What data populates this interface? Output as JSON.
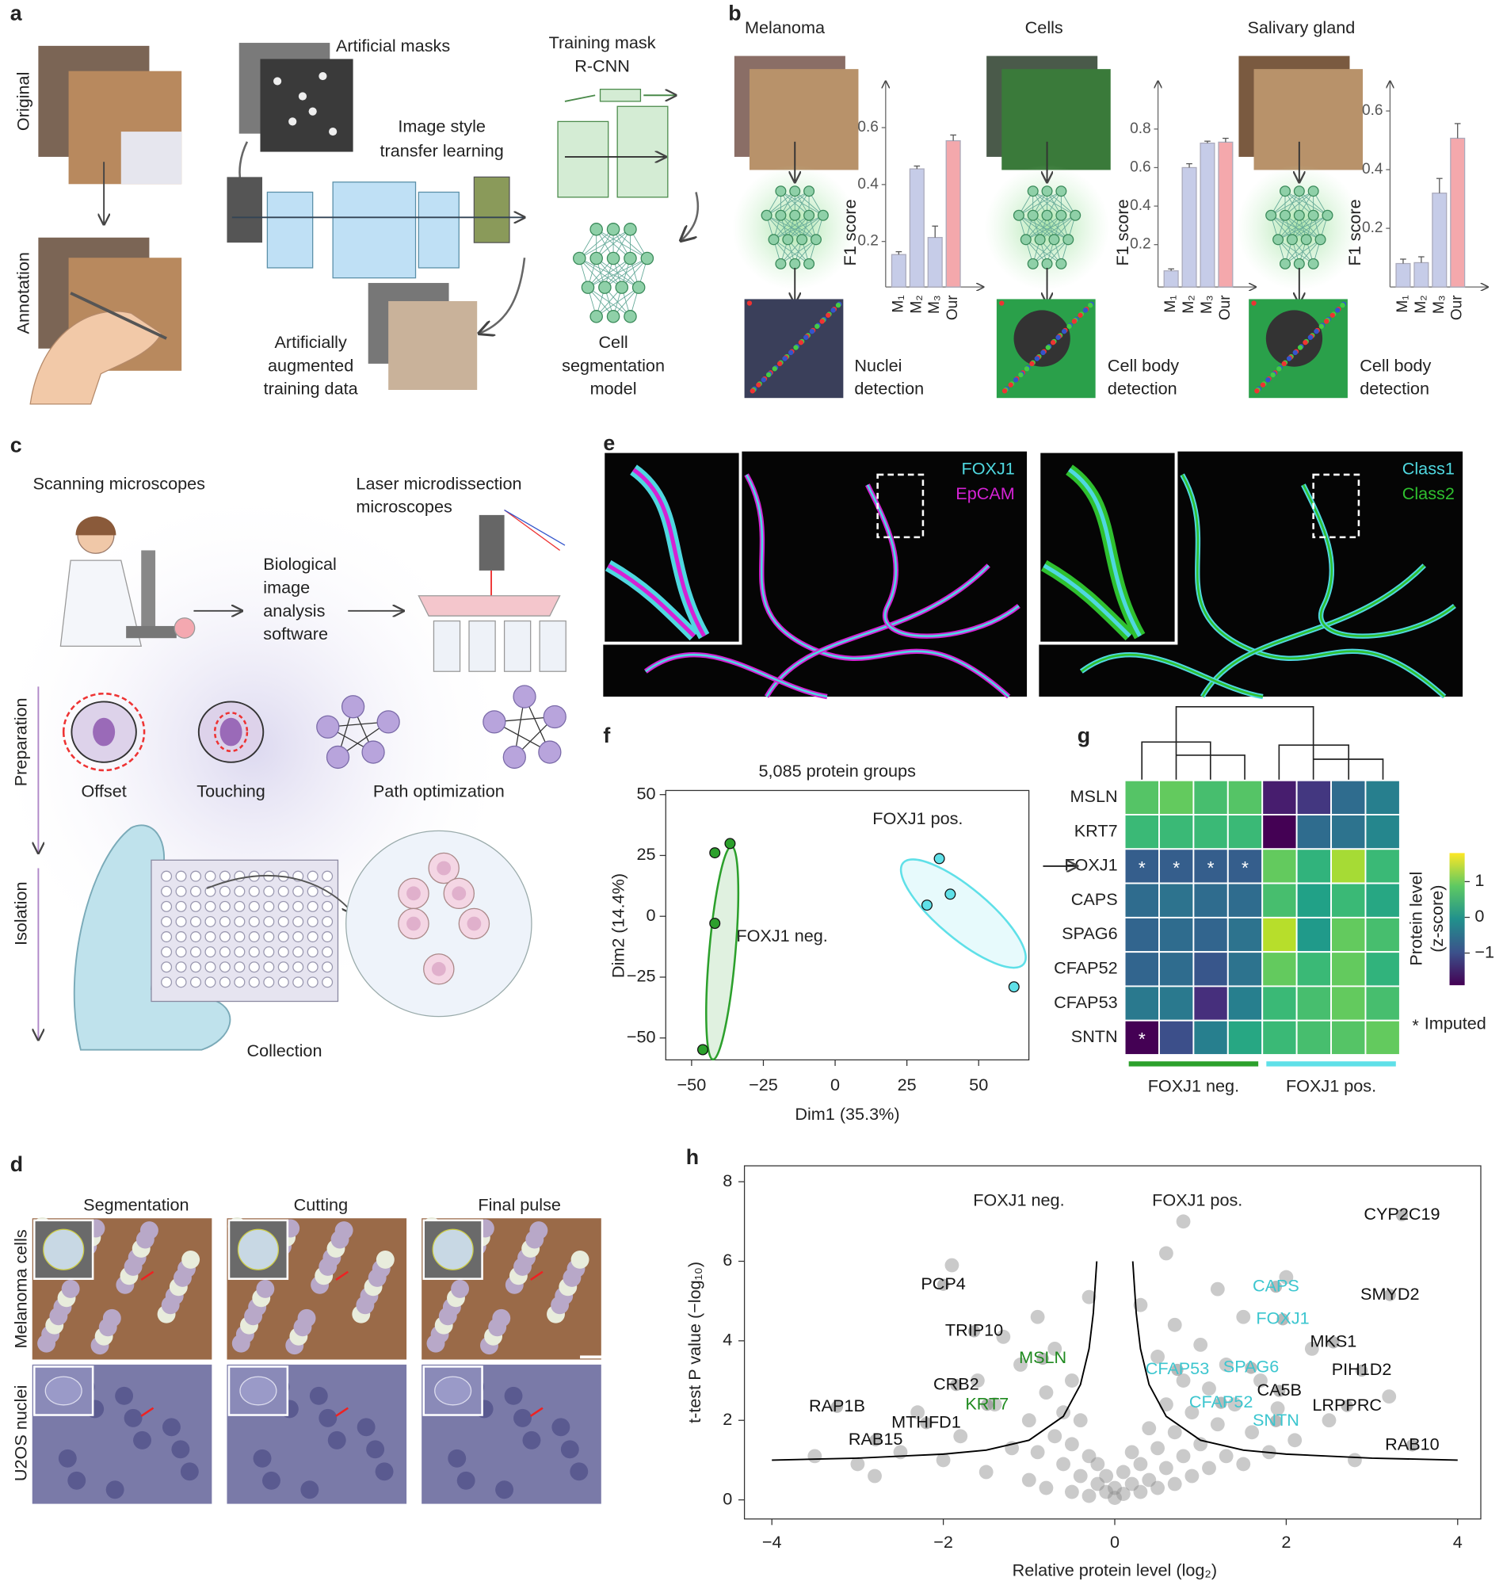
{
  "panel_labels": [
    "a",
    "b",
    "c",
    "d",
    "e",
    "f",
    "g",
    "h"
  ],
  "panel_a": {
    "original": "Original",
    "annotation": "Annotation",
    "artificial_masks": "Artificial masks",
    "style_transfer": [
      "Image style",
      "transfer learning"
    ],
    "augmented": [
      "Artificially",
      "augmented",
      "training data"
    ],
    "training": [
      "Training mask",
      "R-CNN"
    ],
    "model": [
      "Cell",
      "segmentation",
      "model"
    ]
  },
  "panel_c": {
    "scanning": "Scanning microscopes",
    "laser": [
      "Laser microdissection",
      "microscopes"
    ],
    "software": [
      "Biological",
      "image",
      "analysis",
      "software"
    ],
    "preparation": "Preparation",
    "isolation": "Isolation",
    "offset": "Offset",
    "touching": "Touching",
    "path": "Path optimization",
    "collection": "Collection"
  },
  "panel_d": {
    "columns": [
      "Segmentation",
      "Cutting",
      "Final pulse"
    ],
    "rows": [
      "Melanoma cells",
      "U2OS nuclei"
    ]
  },
  "panel_e": {
    "left": [
      {
        "text": "FOXJ1",
        "color": "#4fd8e0"
      },
      {
        "text": "EpCAM",
        "color": "#d422d4"
      }
    ],
    "right": [
      {
        "text": "Class1",
        "color": "#4fd8e0"
      },
      {
        "text": "Class2",
        "color": "#2fc02f"
      }
    ]
  },
  "chart_data": [
    {
      "type": "bar",
      "title": "Melanoma",
      "ylabel": "F1 score",
      "caption": [
        "Nuclei",
        "detection"
      ],
      "categories": [
        "M₁",
        "M₂",
        "M₃",
        "Our"
      ],
      "values": [
        0.154,
        0.455,
        0.214,
        0.554
      ],
      "errors": [
        0.01,
        0.01,
        0.04,
        0.02
      ],
      "colors": [
        "#c6cce8",
        "#c6cce8",
        "#c6cce8",
        "#f4a8ac"
      ],
      "ylim": [
        0.04,
        0.71
      ],
      "yticks": [
        0.2,
        0.4,
        0.6
      ]
    },
    {
      "type": "bar",
      "title": "Cells",
      "ylabel": "F1 score",
      "caption": [
        "Cell body",
        "detection"
      ],
      "categories": [
        "M₁",
        "M₂",
        "M₃",
        "Our"
      ],
      "values": [
        0.064,
        0.6,
        0.727,
        0.732
      ],
      "errors": [
        0.01,
        0.02,
        0.01,
        0.02
      ],
      "colors": [
        "#c6cce8",
        "#c6cce8",
        "#c6cce8",
        "#f4a8ac"
      ],
      "ylim": [
        -0.02,
        0.97
      ],
      "yticks": [
        0.2,
        0.4,
        0.6,
        0.8
      ]
    },
    {
      "type": "bar",
      "title": "Salivary gland",
      "ylabel": "F1 score",
      "caption": [
        "Cell body",
        "detection"
      ],
      "categories": [
        "M₁",
        "M₂",
        "M₃",
        "Our"
      ],
      "values": [
        0.08,
        0.083,
        0.32,
        0.507
      ],
      "errors": [
        0.015,
        0.02,
        0.05,
        0.05
      ],
      "colors": [
        "#c6cce8",
        "#c6cce8",
        "#c6cce8",
        "#f4a8ac"
      ],
      "ylim": [
        0,
        0.65
      ],
      "yticks": [
        0.2,
        0.4,
        0.6
      ]
    },
    {
      "type": "scatter",
      "title": "5,085 protein groups",
      "xlabel": "Dim1 (35.3%)",
      "ylabel": "Dim2 (14.4%)",
      "xlim": [
        -59,
        67.5
      ],
      "ylim": [
        -59,
        51.7
      ],
      "xticks": [
        {
          "value": -50,
          "label": "−50"
        },
        {
          "value": -25,
          "label": "−25"
        },
        0,
        25,
        50
      ],
      "yticks": [
        50,
        25,
        0,
        {
          "value": -25,
          "label": "−25"
        },
        {
          "value": -50,
          "label": "−50"
        }
      ],
      "series": [
        {
          "name": "FOXJ1 neg.",
          "color": "#2ca02c",
          "x": [
            -41.9,
            -36.6,
            -41.9,
            -46.1
          ],
          "y": [
            26.1,
            29.9,
            -2.9,
            -54.8
          ]
        },
        {
          "name": "FOXJ1 pos.",
          "color": "#5fe0e8",
          "x": [
            36.3,
            40.1,
            32,
            62.3
          ],
          "y": [
            23.7,
            9.1,
            4.6,
            -29
          ]
        }
      ]
    },
    {
      "type": "heatmap",
      "rows": [
        "MSLN",
        "KRT7",
        "FOXJ1",
        "CAPS",
        "SPAG6",
        "CFAP52",
        "CFAP53",
        "SNTN"
      ],
      "values": [
        [
          0.8,
          0.9,
          0.7,
          0.8,
          -1.6,
          -1.3,
          -0.6,
          -0.3
        ],
        [
          0.6,
          0.6,
          0.6,
          0.6,
          -1.9,
          -0.6,
          -0.5,
          -0.2
        ],
        [
          -0.8,
          -0.8,
          -0.8,
          -0.8,
          0.9,
          0.5,
          1.3,
          0.6
        ],
        [
          -0.6,
          -0.5,
          -0.6,
          -0.6,
          0.7,
          0.2,
          0.6,
          0.3
        ],
        [
          -0.7,
          -0.6,
          -0.7,
          -0.5,
          1.4,
          0.1,
          0.9,
          0.7
        ],
        [
          -0.7,
          -0.6,
          -0.9,
          -0.5,
          0.9,
          0.6,
          0.9,
          0.5
        ],
        [
          -0.4,
          -0.4,
          -1.4,
          -0.3,
          0.6,
          0.7,
          0.9,
          0.7
        ],
        [
          -1.9,
          -1.0,
          -0.3,
          0.3,
          0.6,
          0.7,
          0.8,
          0.9
        ]
      ],
      "colormap": "viridis",
      "clim": [
        -1.9,
        1.8
      ],
      "cbar_label": [
        "Protein level",
        "(z-score)"
      ],
      "cbar_ticks": [
        1,
        0,
        {
          "value": -1,
          "label": "−1"
        }
      ],
      "imputed_marker": "*",
      "imputed_label": "Imputed",
      "imputed": [
        [
          2,
          0
        ],
        [
          2,
          1
        ],
        [
          2,
          2
        ],
        [
          2,
          3
        ],
        [
          7,
          0
        ]
      ],
      "groups": [
        {
          "name": "FOXJ1 neg.",
          "color": "#2ca02c",
          "columns": [
            0,
            1,
            2,
            3
          ]
        },
        {
          "name": "FOXJ1 pos.",
          "color": "#5fe0e8",
          "columns": [
            4,
            5,
            6,
            7
          ]
        }
      ]
    },
    {
      "type": "volcano",
      "headers": [
        "FOXJ1 neg.",
        "FOXJ1 pos."
      ],
      "xlabel": "Relative protein level (log₂)",
      "ylabel": "t-test P value (−log₁₀)",
      "xlim": [
        -4.32,
        4.27
      ],
      "ylim": [
        -0.48,
        8.4
      ],
      "xticks": [
        {
          "value": -4,
          "label": "−4"
        },
        {
          "value": -2,
          "label": "−2"
        },
        0,
        2,
        4
      ],
      "yticks": [
        0,
        2,
        4,
        6,
        8
      ],
      "points": {
        "color": "#8a8a8a",
        "x": [
          -3.0,
          -2.5,
          -2.3,
          -2.0,
          -1.9,
          -1.8,
          -1.6,
          -1.5,
          -1.4,
          -1.3,
          -1.2,
          -1.1,
          -1.0,
          -1.0,
          -0.9,
          -0.9,
          -0.8,
          -0.8,
          -0.7,
          -0.7,
          -0.6,
          -0.6,
          -0.5,
          -0.5,
          -0.5,
          -0.4,
          -0.4,
          -0.3,
          -0.3,
          -0.3,
          -0.2,
          -0.2,
          -0.1,
          -0.1,
          0,
          0,
          0.1,
          0.1,
          0.2,
          0.2,
          0.3,
          0.3,
          0.3,
          0.4,
          0.4,
          0.5,
          0.5,
          0.5,
          0.6,
          0.6,
          0.6,
          0.7,
          0.7,
          0.7,
          0.8,
          0.8,
          0.8,
          0.9,
          0.9,
          1.0,
          1.0,
          1.1,
          1.1,
          1.2,
          1.2,
          1.3,
          1.3,
          1.4,
          1.5,
          1.5,
          1.6,
          1.7,
          1.8,
          1.9,
          2.0,
          2.1,
          2.3,
          2.5,
          2.8,
          3.2,
          -3.5,
          -2.8
        ],
        "y": [
          0.9,
          1.2,
          2.2,
          1.0,
          5.9,
          1.6,
          3.0,
          0.7,
          2.4,
          4.1,
          1.3,
          3.4,
          0.5,
          2.0,
          1.2,
          4.6,
          0.3,
          2.7,
          1.6,
          3.8,
          0.9,
          2.2,
          0.2,
          1.4,
          3.0,
          0.6,
          2.0,
          0.1,
          1.1,
          5.1,
          0.4,
          0.9,
          0.2,
          0.6,
          0.05,
          0.3,
          0.15,
          0.7,
          0.4,
          1.2,
          0.2,
          0.9,
          4.9,
          0.5,
          1.8,
          0.3,
          1.3,
          3.6,
          0.8,
          2.4,
          6.2,
          0.4,
          1.7,
          4.4,
          1.1,
          3.0,
          7.0,
          0.6,
          2.2,
          1.4,
          3.9,
          0.8,
          2.8,
          1.9,
          5.3,
          1.1,
          3.4,
          2.4,
          0.9,
          4.6,
          1.7,
          3.0,
          1.2,
          2.3,
          5.6,
          1.5,
          3.8,
          2.0,
          1.0,
          2.6,
          1.1,
          0.6
        ]
      },
      "threshold_color": "#000000",
      "threshold": [
        {
          "x": [
            -4,
            -3,
            -2,
            -1.5,
            -1,
            -0.6,
            -0.4,
            -0.3,
            -0.25,
            -0.21
          ],
          "y": [
            1.0,
            1.05,
            1.15,
            1.25,
            1.5,
            2.1,
            2.9,
            3.8,
            4.7,
            6.0
          ]
        },
        {
          "x": [
            4,
            3,
            2,
            1.5,
            1,
            0.6,
            0.4,
            0.3,
            0.25,
            0.21
          ],
          "y": [
            1.0,
            1.05,
            1.15,
            1.25,
            1.5,
            2.1,
            2.9,
            3.8,
            4.7,
            6.0
          ]
        }
      ],
      "genes": [
        {
          "label": "PCP4",
          "x": -2.0,
          "y": 5.41,
          "color": "#111111"
        },
        {
          "label": "TRIP10",
          "x": -1.64,
          "y": 4.24,
          "color": "#111111"
        },
        {
          "label": "MSLN",
          "x": -0.84,
          "y": 3.55,
          "color": "#1f8a1f"
        },
        {
          "label": "CRB2",
          "x": -1.85,
          "y": 2.89,
          "color": "#111111"
        },
        {
          "label": "KRT7",
          "x": -1.49,
          "y": 2.39,
          "color": "#1f8a1f"
        },
        {
          "label": "RAP1B",
          "x": -3.24,
          "y": 2.34,
          "color": "#111111"
        },
        {
          "label": "MTHFD1",
          "x": -2.2,
          "y": 1.93,
          "color": "#111111"
        },
        {
          "label": "RAB15",
          "x": -2.79,
          "y": 1.5,
          "color": "#111111"
        },
        {
          "label": "CYP2C19",
          "x": 3.35,
          "y": 7.16,
          "color": "#111111"
        },
        {
          "label": "CAPS",
          "x": 1.88,
          "y": 5.36,
          "color": "#3cc6cf"
        },
        {
          "label": "SMYD2",
          "x": 3.21,
          "y": 5.15,
          "color": "#111111"
        },
        {
          "label": "FOXJ1",
          "x": 1.96,
          "y": 4.54,
          "color": "#3cc6cf"
        },
        {
          "label": "MKS1",
          "x": 2.55,
          "y": 3.96,
          "color": "#111111"
        },
        {
          "label": "CFAP53",
          "x": 0.73,
          "y": 3.27,
          "color": "#3cc6cf"
        },
        {
          "label": "SPAG6",
          "x": 1.59,
          "y": 3.32,
          "color": "#3cc6cf"
        },
        {
          "label": "PIH1D2",
          "x": 2.88,
          "y": 3.25,
          "color": "#111111"
        },
        {
          "label": "CA5B",
          "x": 1.92,
          "y": 2.74,
          "color": "#111111"
        },
        {
          "label": "CFAP52",
          "x": 1.24,
          "y": 2.44,
          "color": "#3cc6cf"
        },
        {
          "label": "LRPPRC",
          "x": 2.71,
          "y": 2.36,
          "color": "#111111"
        },
        {
          "label": "SNTN",
          "x": 1.88,
          "y": 1.98,
          "color": "#3cc6cf"
        },
        {
          "label": "RAB10",
          "x": 3.47,
          "y": 1.37,
          "color": "#111111"
        }
      ]
    }
  ]
}
